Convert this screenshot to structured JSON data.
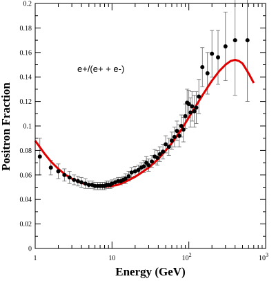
{
  "chart_data": {
    "type": "scatter",
    "title": "",
    "xlabel": "Energy (GeV)",
    "ylabel": "Positron Fraction",
    "annotation": "e+/(e+ + e-)",
    "xscale": "log",
    "xlim": [
      1,
      1000
    ],
    "ylim": [
      0,
      0.2
    ],
    "grid": false,
    "legend": "none",
    "x_ticks": [
      {
        "value": 1,
        "base": "1",
        "exp": ""
      },
      {
        "value": 10,
        "base": "10",
        "exp": ""
      },
      {
        "value": 100,
        "base": "10",
        "exp": "2"
      },
      {
        "value": 1000,
        "base": "10",
        "exp": "3"
      }
    ],
    "y_ticks": [
      "0",
      "0.02",
      "0.04",
      "0.06",
      "0.08",
      "0.1",
      "0.12",
      "0.14",
      "0.16",
      "0.18",
      "0.2"
    ],
    "colors": {
      "points": "#000000",
      "errorbars": "#666666",
      "fit": "#e00000"
    },
    "series": [
      {
        "kind": "points",
        "x": [
          1.15,
          1.6,
          2.0,
          2.4,
          2.8,
          3.2,
          3.6,
          4.0,
          4.5,
          5.0,
          5.5,
          6.0,
          6.5,
          7.0,
          7.5,
          8.0,
          8.5,
          9.0,
          9.5,
          10.0,
          11.0,
          12.0,
          13.0,
          14.0,
          15.0,
          16.5,
          18.0,
          20.0,
          22.0,
          24.0,
          26.0,
          28.0,
          30.0,
          33.0,
          36.0,
          39.0,
          42.0,
          46.0,
          50.0,
          55.0,
          60.0,
          65.0,
          70.0,
          75.0,
          80.0,
          85.0,
          90.0,
          95.0,
          100.0,
          105.0,
          110.0,
          118.0,
          125.0,
          135.0,
          150.0,
          175.0,
          200.0,
          240.0,
          300.0,
          400.0,
          580.0
        ],
        "y": [
          0.075,
          0.066,
          0.063,
          0.06,
          0.058,
          0.056,
          0.055,
          0.054,
          0.053,
          0.052,
          0.052,
          0.051,
          0.051,
          0.051,
          0.051,
          0.051,
          0.052,
          0.052,
          0.052,
          0.053,
          0.054,
          0.055,
          0.055,
          0.056,
          0.057,
          0.059,
          0.062,
          0.063,
          0.064,
          0.066,
          0.067,
          0.07,
          0.068,
          0.071,
          0.075,
          0.074,
          0.077,
          0.079,
          0.085,
          0.083,
          0.088,
          0.091,
          0.096,
          0.092,
          0.1,
          0.097,
          0.108,
          0.119,
          0.118,
          0.111,
          0.116,
          0.112,
          0.115,
          0.124,
          0.148,
          0.143,
          0.159,
          0.156,
          0.165,
          0.17,
          0.17
        ],
        "err": [
          0.015,
          0.006,
          0.006,
          0.005,
          0.005,
          0.004,
          0.004,
          0.004,
          0.004,
          0.003,
          0.003,
          0.003,
          0.003,
          0.003,
          0.003,
          0.003,
          0.003,
          0.003,
          0.003,
          0.003,
          0.003,
          0.003,
          0.003,
          0.003,
          0.004,
          0.004,
          0.004,
          0.004,
          0.004,
          0.004,
          0.005,
          0.005,
          0.005,
          0.005,
          0.006,
          0.006,
          0.006,
          0.006,
          0.007,
          0.007,
          0.007,
          0.008,
          0.008,
          0.009,
          0.009,
          0.01,
          0.01,
          0.011,
          0.011,
          0.012,
          0.012,
          0.013,
          0.013,
          0.014,
          0.016,
          0.017,
          0.019,
          0.022,
          0.028,
          0.045,
          0.05
        ]
      },
      {
        "kind": "fit-curve",
        "x": [
          1,
          1.3,
          1.6,
          2,
          2.5,
          3,
          3.5,
          4,
          5,
          6,
          7,
          8,
          10,
          12,
          15,
          20,
          25,
          30,
          40,
          50,
          60,
          80,
          100,
          120,
          150,
          200,
          250,
          300,
          350,
          400,
          450,
          500,
          600,
          700
        ],
        "y": [
          0.088,
          0.078,
          0.071,
          0.065,
          0.06,
          0.057,
          0.055,
          0.0535,
          0.052,
          0.051,
          0.0505,
          0.0505,
          0.051,
          0.052,
          0.0545,
          0.0585,
          0.0625,
          0.066,
          0.073,
          0.08,
          0.086,
          0.097,
          0.107,
          0.115,
          0.125,
          0.137,
          0.145,
          0.15,
          0.153,
          0.154,
          0.153,
          0.151,
          0.143,
          0.135
        ]
      }
    ]
  }
}
